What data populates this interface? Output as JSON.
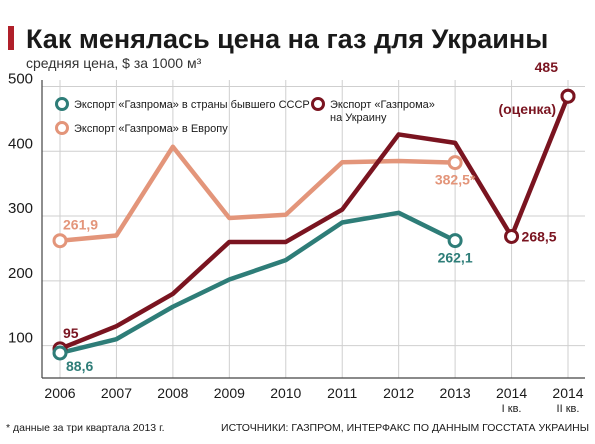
{
  "colors": {
    "ukraine": "#7a1420",
    "ussr": "#2e7d78",
    "europe": "#e3957a",
    "grid": "#cfcfcf",
    "frame": "#444444",
    "title_bar": "#b0202a"
  },
  "chart_data": {
    "type": "line",
    "title": "Как менялась цена на газ для Украины",
    "subtitle": "средняя цена, $ за 1000 м³",
    "xlabel": "",
    "ylabel": "",
    "x_labels": [
      "2006",
      "2007",
      "2008",
      "2009",
      "2010",
      "2011",
      "2012",
      "2013",
      "2014",
      "2014"
    ],
    "x_sublabels": [
      "",
      "",
      "",
      "",
      "",
      "",
      "",
      "",
      "I кв.",
      "II кв."
    ],
    "y_ticks": [
      100,
      200,
      300,
      400,
      500
    ],
    "ylim": [
      50,
      510
    ],
    "grid": true,
    "legend_position": "top",
    "series": [
      {
        "name": "Экспорт «Газпрома» в страны бывшего СССР",
        "color_key": "ussr",
        "values": [
          88.6,
          110,
          160,
          202,
          232,
          290,
          305,
          262.1,
          null,
          null
        ]
      },
      {
        "name": "Экспорт «Газпрома» в Европу",
        "color_key": "europe",
        "values": [
          261.9,
          270,
          407,
          297,
          302,
          383,
          385,
          382.5,
          null,
          null
        ]
      },
      {
        "name": "Экспорт «Газпрома» на Украину",
        "color_key": "ukraine",
        "values": [
          95,
          130,
          180,
          260,
          260,
          310,
          426,
          413,
          268.5,
          485
        ]
      }
    ],
    "annotations": [
      {
        "text": "95",
        "series": 2,
        "index": 0,
        "pos": "above"
      },
      {
        "text": "88,6",
        "series": 0,
        "index": 0,
        "pos": "below-right"
      },
      {
        "text": "261,9",
        "series": 1,
        "index": 0,
        "pos": "above"
      },
      {
        "text": "262,1",
        "series": 0,
        "index": 7,
        "pos": "below"
      },
      {
        "text": "382,5*",
        "series": 1,
        "index": 7,
        "pos": "below"
      },
      {
        "text": "268,5",
        "series": 2,
        "index": 8,
        "pos": "right"
      },
      {
        "text": "485",
        "series": 2,
        "index": 9,
        "pos": "left-top"
      },
      {
        "text": "(оценка)",
        "series": 2,
        "index": 9,
        "pos": "left-below"
      }
    ],
    "footnote": "* данные за три квартала 2013 г.",
    "source": "ИСТОЧНИКИ:  ГАЗПРОМ, ИНТЕРФАКС ПО ДАННЫМ ГОССТАТА УКРАИНЫ"
  }
}
